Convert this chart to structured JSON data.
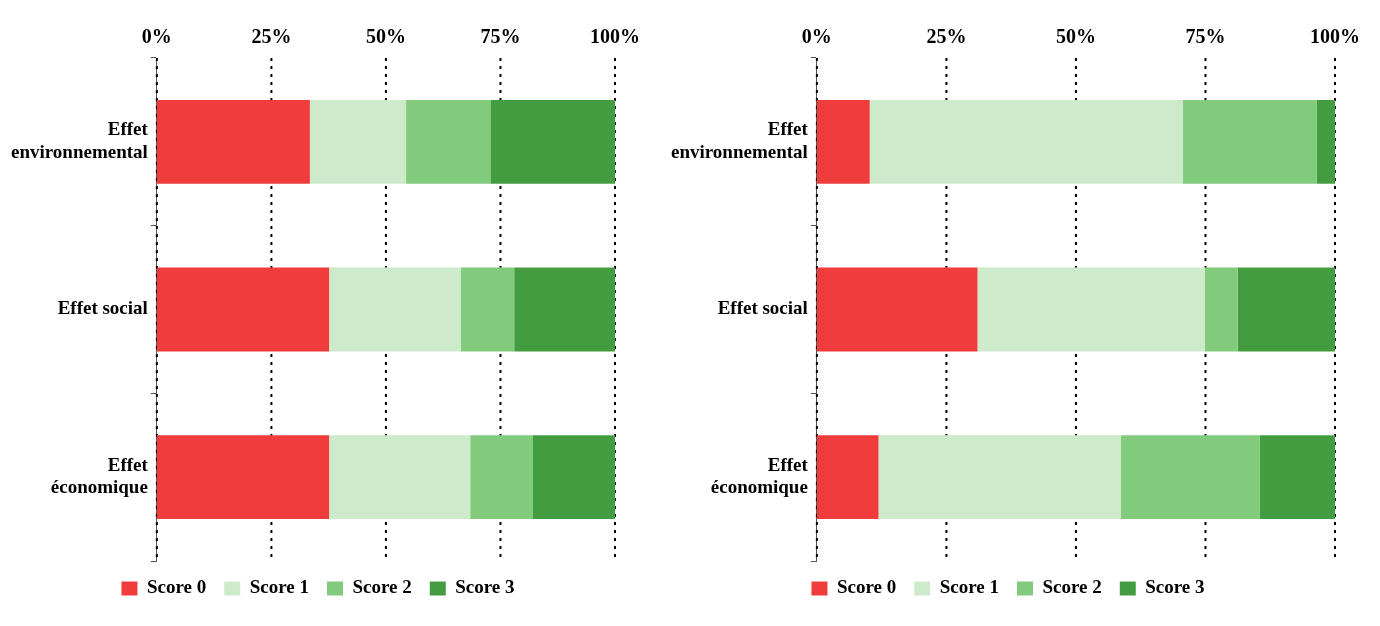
{
  "chart_data": [
    {
      "type": "bar",
      "orientation": "horizontal",
      "stacked": true,
      "categories": [
        "Effet environnemental",
        "Effet social",
        "Effet économique"
      ],
      "series": [
        {
          "name": "Score 0",
          "color": "#f03c3c",
          "values": [
            33.4,
            37.6,
            37.6
          ]
        },
        {
          "name": "Score 1",
          "color": "#cdeacb",
          "values": [
            21.0,
            28.7,
            30.8
          ]
        },
        {
          "name": "Score 2",
          "color": "#82cb7c",
          "values": [
            18.4,
            11.7,
            13.7
          ]
        },
        {
          "name": "Score 3",
          "color": "#449c40",
          "values": [
            27.2,
            22.0,
            17.9
          ]
        }
      ],
      "xlim": [
        0,
        100
      ],
      "xticks": [
        {
          "value": 0,
          "label": "0%"
        },
        {
          "value": 25,
          "label": "25%"
        },
        {
          "value": 50,
          "label": "50%"
        },
        {
          "value": 75,
          "label": "75%"
        },
        {
          "value": 100,
          "label": "100%"
        }
      ],
      "grid": "x",
      "legend": "bottom"
    },
    {
      "type": "bar",
      "orientation": "horizontal",
      "stacked": true,
      "categories": [
        "Effet environnemental",
        "Effet social",
        "Effet économique"
      ],
      "series": [
        {
          "name": "Score 0",
          "color": "#f03c3c",
          "values": [
            10.2,
            31.0,
            11.9
          ]
        },
        {
          "name": "Score 1",
          "color": "#cdeacb",
          "values": [
            60.4,
            43.9,
            46.8
          ]
        },
        {
          "name": "Score 2",
          "color": "#82cb7c",
          "values": [
            25.9,
            6.3,
            26.8
          ]
        },
        {
          "name": "Score 3",
          "color": "#449c40",
          "values": [
            3.5,
            18.8,
            14.5
          ]
        }
      ],
      "xlim": [
        0,
        100
      ],
      "xticks": [
        {
          "value": 0,
          "label": "0%"
        },
        {
          "value": 25,
          "label": "25%"
        },
        {
          "value": 50,
          "label": "50%"
        },
        {
          "value": 75,
          "label": "75%"
        },
        {
          "value": 100,
          "label": "100%"
        }
      ],
      "grid": "x",
      "legend": "bottom"
    }
  ]
}
